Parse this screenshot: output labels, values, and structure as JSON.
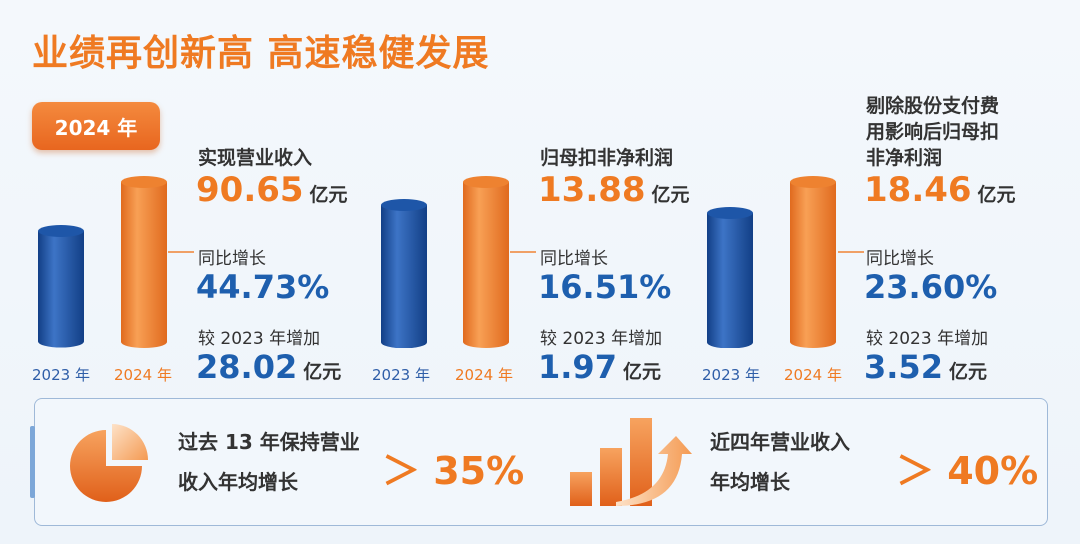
{
  "title": "业绩再创新高  高速稳健发展",
  "year_badge": "2024 年",
  "colors": {
    "accent_orange": "#ef7a22",
    "accent_blue": "#1e5fae"
  },
  "chart_data": [
    {
      "type": "bar",
      "title": "实现营业收入",
      "categories": [
        "2023 年",
        "2024 年"
      ],
      "values": [
        62.63,
        90.65
      ],
      "value_2024": "90.65",
      "unit": "亿元",
      "yoy_label": "同比增长",
      "yoy": "44.73%",
      "delta_label": "较 2023 年增加",
      "delta": "28.02",
      "delta_unit": "亿元"
    },
    {
      "type": "bar",
      "title": "归母扣非净利润",
      "categories": [
        "2023 年",
        "2024 年"
      ],
      "values": [
        11.91,
        13.88
      ],
      "value_2024": "13.88",
      "unit": "亿元",
      "yoy_label": "同比增长",
      "yoy": "16.51%",
      "delta_label": "较 2023 年增加",
      "delta": "1.97",
      "delta_unit": "亿元"
    },
    {
      "type": "bar",
      "title_lines": [
        "剔除股份支付费",
        "用影响后归母扣",
        "非净利润"
      ],
      "categories": [
        "2023 年",
        "2024 年"
      ],
      "values": [
        14.94,
        18.46
      ],
      "value_2024": "18.46",
      "unit": "亿元",
      "yoy_label": "同比增长",
      "yoy": "23.60%",
      "delta_label": "较 2023 年增加",
      "delta": "3.52",
      "delta_unit": "亿元"
    }
  ],
  "bottom": {
    "left": {
      "line1": "过去 13 年保持营业",
      "line2": "收入年均增长",
      "compare": "＞ 35%",
      "icon": "pie-chart-icon"
    },
    "right": {
      "line1": "近四年营业收入",
      "line2": "年均增长",
      "compare": "＞ 40%",
      "icon": "bar-growth-icon"
    }
  }
}
